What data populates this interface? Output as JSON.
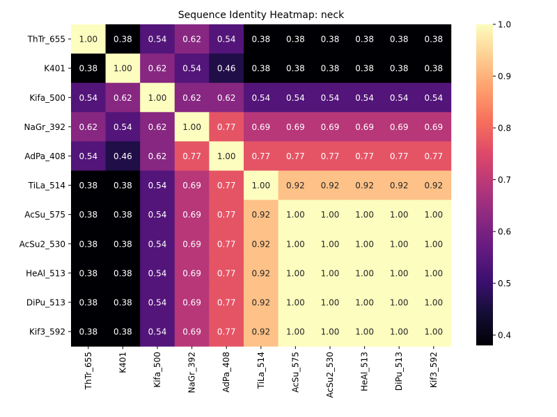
{
  "chart_data": {
    "type": "heatmap",
    "title": "Sequence Identity Heatmap: neck",
    "xlabel": "",
    "ylabel": "",
    "x_labels": [
      "ThTr_655",
      "K401",
      "Kifa_500",
      "NaGr_392",
      "AdPa_408",
      "TiLa_514",
      "AcSu_575",
      "AcSu2_530",
      "HeAl_513",
      "DiPu_513",
      "Kif3_592"
    ],
    "y_labels": [
      "ThTr_655",
      "K401",
      "Kifa_500",
      "NaGr_392",
      "AdPa_408",
      "TiLa_514",
      "AcSu_575",
      "AcSu2_530",
      "HeAl_513",
      "DiPu_513",
      "Kif3_592"
    ],
    "values": [
      [
        1.0,
        0.38,
        0.54,
        0.62,
        0.54,
        0.38,
        0.38,
        0.38,
        0.38,
        0.38,
        0.38
      ],
      [
        0.38,
        1.0,
        0.62,
        0.54,
        0.46,
        0.38,
        0.38,
        0.38,
        0.38,
        0.38,
        0.38
      ],
      [
        0.54,
        0.62,
        1.0,
        0.62,
        0.62,
        0.54,
        0.54,
        0.54,
        0.54,
        0.54,
        0.54
      ],
      [
        0.62,
        0.54,
        0.62,
        1.0,
        0.77,
        0.69,
        0.69,
        0.69,
        0.69,
        0.69,
        0.69
      ],
      [
        0.54,
        0.46,
        0.62,
        0.77,
        1.0,
        0.77,
        0.77,
        0.77,
        0.77,
        0.77,
        0.77
      ],
      [
        0.38,
        0.38,
        0.54,
        0.69,
        0.77,
        1.0,
        0.92,
        0.92,
        0.92,
        0.92,
        0.92
      ],
      [
        0.38,
        0.38,
        0.54,
        0.69,
        0.77,
        0.92,
        1.0,
        1.0,
        1.0,
        1.0,
        1.0
      ],
      [
        0.38,
        0.38,
        0.54,
        0.69,
        0.77,
        0.92,
        1.0,
        1.0,
        1.0,
        1.0,
        1.0
      ],
      [
        0.38,
        0.38,
        0.54,
        0.69,
        0.77,
        0.92,
        1.0,
        1.0,
        1.0,
        1.0,
        1.0
      ],
      [
        0.38,
        0.38,
        0.54,
        0.69,
        0.77,
        0.92,
        1.0,
        1.0,
        1.0,
        1.0,
        1.0
      ],
      [
        0.38,
        0.38,
        0.54,
        0.69,
        0.77,
        0.92,
        1.0,
        1.0,
        1.0,
        1.0,
        1.0
      ]
    ],
    "annotation_format": "2 decimals",
    "colormap": "magma",
    "vmin": 0.38,
    "vmax": 1.0,
    "colorbar_ticks": [
      0.4,
      0.5,
      0.6,
      0.7,
      0.8,
      0.9,
      1.0
    ],
    "colorbar_tick_labels": [
      "0.4",
      "0.5",
      "0.6",
      "0.7",
      "0.8",
      "0.9",
      "1.0"
    ],
    "grid": false,
    "legend": "colorbar at right"
  }
}
